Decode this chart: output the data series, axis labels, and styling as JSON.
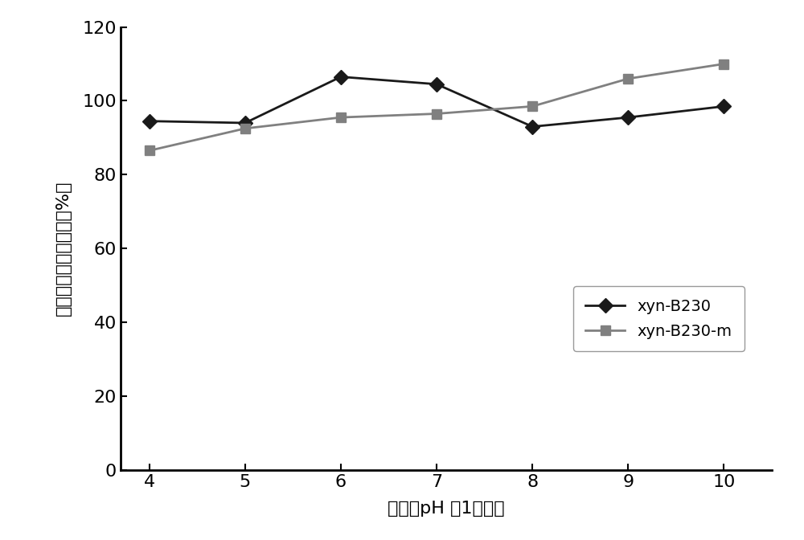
{
  "x": [
    4,
    5,
    6,
    7,
    8,
    9,
    10
  ],
  "xyn_B230_y": [
    94.5,
    94.0,
    106.5,
    104.5,
    93.0,
    95.5,
    98.5
  ],
  "xyn_B230m_y": [
    86.5,
    92.5,
    95.5,
    96.5,
    98.5,
    106.0,
    110.0
  ],
  "line1_color": "#1a1a1a",
  "line2_color": "#808080",
  "line1_label": "xyn-B230",
  "line2_label": "xyn-B230-m",
  "xlabel": "处理的pH （1小时）",
  "ylabel": "相对的木聚糖酶活性（%）",
  "ylim": [
    0,
    120
  ],
  "xlim": [
    3.7,
    10.5
  ],
  "yticks": [
    0,
    20,
    40,
    60,
    80,
    100,
    120
  ],
  "xticks": [
    4,
    5,
    6,
    7,
    8,
    9,
    10
  ],
  "background_color": "#ffffff",
  "label_fontsize": 16,
  "tick_fontsize": 16,
  "legend_fontsize": 14
}
